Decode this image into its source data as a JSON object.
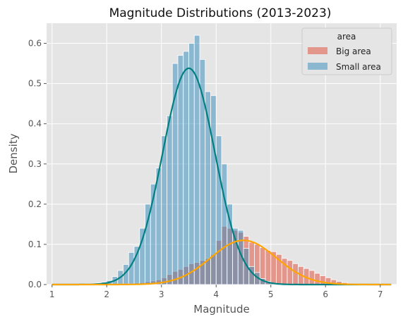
{
  "chart_data": {
    "type": "bar",
    "title": "Magnitude Distributions (2013-2023)",
    "xlabel": "Magnitude",
    "ylabel": "Density",
    "xlim": [
      0.9,
      7.3
    ],
    "ylim": [
      0,
      0.65
    ],
    "xticks": [
      1,
      2,
      3,
      4,
      5,
      6,
      7
    ],
    "yticks": [
      0.0,
      0.1,
      0.2,
      0.3,
      0.4,
      0.5,
      0.6
    ],
    "grid": true,
    "legend": {
      "title": "area",
      "placement": "top-right",
      "entries": [
        "Big area",
        "Small area"
      ]
    },
    "bin_width": 0.1,
    "series": [
      {
        "name": "Big area",
        "kind": "histogram",
        "color": "#e24a33",
        "bins_start": [
          2.3,
          2.4,
          2.5,
          2.6,
          2.7,
          2.8,
          2.9,
          3.0,
          3.1,
          3.2,
          3.3,
          3.4,
          3.5,
          3.6,
          3.7,
          3.8,
          3.9,
          4.0,
          4.1,
          4.2,
          4.3,
          4.4,
          4.5,
          4.6,
          4.7,
          4.8,
          4.9,
          5.0,
          5.1,
          5.2,
          5.3,
          5.4,
          5.5,
          5.6,
          5.7,
          5.8,
          5.9,
          6.0,
          6.1,
          6.2,
          6.3
        ],
        "values": [
          0.002,
          0.003,
          0.004,
          0.005,
          0.007,
          0.009,
          0.012,
          0.017,
          0.025,
          0.033,
          0.038,
          0.045,
          0.052,
          0.055,
          0.06,
          0.065,
          0.075,
          0.11,
          0.145,
          0.14,
          0.135,
          0.13,
          0.12,
          0.105,
          0.1,
          0.092,
          0.085,
          0.082,
          0.075,
          0.065,
          0.06,
          0.052,
          0.045,
          0.04,
          0.035,
          0.028,
          0.022,
          0.017,
          0.012,
          0.008,
          0.005
        ]
      },
      {
        "name": "Small area",
        "kind": "histogram",
        "color": "#348abd",
        "bins_start": [
          1.6,
          1.7,
          1.8,
          1.9,
          2.0,
          2.1,
          2.2,
          2.3,
          2.4,
          2.5,
          2.6,
          2.7,
          2.8,
          2.9,
          3.0,
          3.1,
          3.2,
          3.3,
          3.4,
          3.5,
          3.6,
          3.7,
          3.8,
          3.9,
          4.0,
          4.1,
          4.2,
          4.3,
          4.4,
          4.5,
          4.6,
          4.7,
          4.8,
          4.9,
          5.0,
          5.1
        ],
        "values": [
          0.002,
          0.003,
          0.004,
          0.006,
          0.01,
          0.02,
          0.035,
          0.05,
          0.08,
          0.095,
          0.14,
          0.2,
          0.25,
          0.29,
          0.37,
          0.42,
          0.55,
          0.57,
          0.58,
          0.6,
          0.62,
          0.56,
          0.48,
          0.47,
          0.37,
          0.3,
          0.2,
          0.14,
          0.135,
          0.09,
          0.045,
          0.03,
          0.015,
          0.008,
          0.004,
          0.002
        ]
      },
      {
        "name": "Small area",
        "kind": "density",
        "color": "#008080",
        "mean": 3.5,
        "sd": 0.48,
        "peak": 0.538
      },
      {
        "name": "Big area",
        "kind": "density",
        "color": "#ffa500",
        "mean": 4.5,
        "sd": 0.6,
        "peak": 0.11
      }
    ]
  }
}
